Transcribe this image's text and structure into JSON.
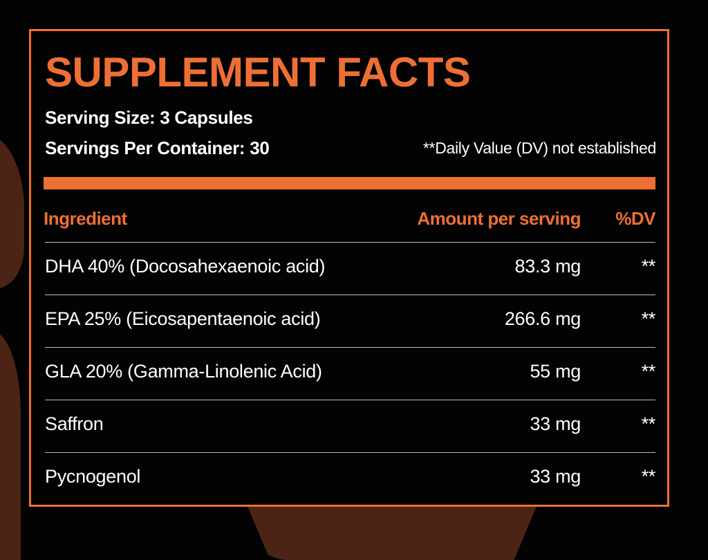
{
  "title": "SUPPLEMENT FACTS",
  "serving_size": "Serving Size: 3 Capsules",
  "servings_per_container": "Servings Per Container: 30",
  "dv_note": "**Daily Value (DV) not established",
  "colors": {
    "accent": "#ee6f35",
    "background": "#030304",
    "text": "#ffffff",
    "divider": "#bdbdbd",
    "decor": "#4b2416"
  },
  "table": {
    "headers": {
      "ingredient": "Ingredient",
      "amount": "Amount per serving",
      "dv": "%DV"
    },
    "rows": [
      {
        "ingredient": "DHA 40% (Docosahexaenoic acid)",
        "amount": "83.3 mg",
        "dv": "**"
      },
      {
        "ingredient": "EPA 25% (Eicosapentaenoic acid)",
        "amount": "266.6 mg",
        "dv": "**"
      },
      {
        "ingredient": "GLA 20% (Gamma-Linolenic Acid)",
        "amount": "55 mg",
        "dv": "**"
      },
      {
        "ingredient": "Saffron",
        "amount": "33 mg",
        "dv": "**"
      },
      {
        "ingredient": "Pycnogenol",
        "amount": "33 mg",
        "dv": "**"
      }
    ]
  }
}
